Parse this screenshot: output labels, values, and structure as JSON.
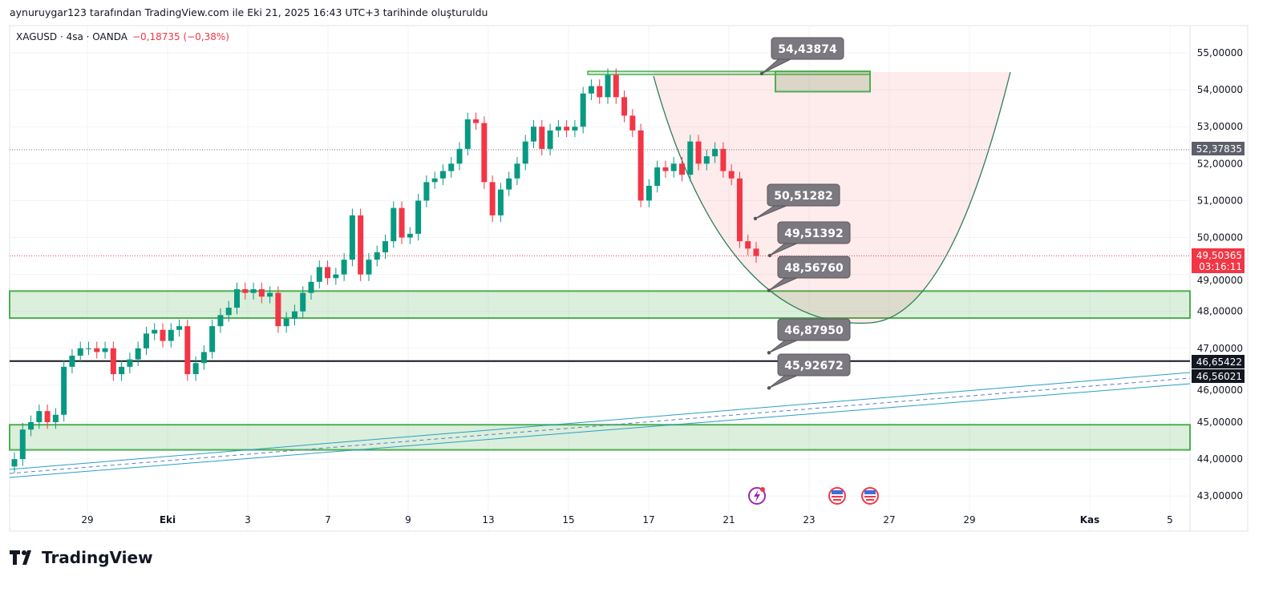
{
  "header": {
    "credit": "aynuruygar123 tarafından TradingView.com ile Eki 21, 2025 16:43 UTC+3 tarihinde oluşturuldu"
  },
  "legend": {
    "symbol": "XAGUSD · 4sa · OANDA",
    "change": "−0,18735 (−0,38%)"
  },
  "brand": {
    "name": "TradingView"
  },
  "colors": {
    "up": "#089981",
    "down": "#f23645",
    "zone": "#4caf50",
    "channel": "#2a9fc4",
    "curve": "#2e7d5b"
  },
  "chart_data": {
    "type": "candlestick",
    "symbol": "XAGUSD",
    "interval": "4sa",
    "ylim": [
      42.6,
      55.5
    ],
    "y_ticks": [
      "55,00000",
      "54,00000",
      "53,00000",
      "52,00000",
      "51,00000",
      "50,00000",
      "49,00000",
      "48,00000",
      "47,00000",
      "46,00000",
      "45,00000",
      "44,00000",
      "43,00000"
    ],
    "y_tick_values": [
      55,
      54,
      53,
      52,
      51,
      50,
      49,
      48,
      47,
      46,
      45,
      44,
      43
    ],
    "x_labels": [
      {
        "label": "29",
        "day": 0
      },
      {
        "label": "Eki",
        "day": 2
      },
      {
        "label": "3",
        "day": 4
      },
      {
        "label": "7",
        "day": 6
      },
      {
        "label": "9",
        "day": 8
      },
      {
        "label": "13",
        "day": 10
      },
      {
        "label": "15",
        "day": 12
      },
      {
        "label": "17",
        "day": 14
      },
      {
        "label": "21",
        "day": 16
      },
      {
        "label": "23",
        "day": 18
      },
      {
        "label": "27",
        "day": 20
      },
      {
        "label": "29",
        "day": 22
      },
      {
        "label": "Kas",
        "day": 25
      },
      {
        "label": "5",
        "day": 27
      }
    ],
    "candles": {
      "first_day": -1.82,
      "last_day": 16.68,
      "open_first": 43.8,
      "wick": 0.18,
      "closes": [
        44.0,
        44.8,
        45.0,
        45.3,
        45.0,
        45.2,
        46.5,
        46.8,
        47.0,
        47.0,
        46.9,
        47.0,
        46.3,
        46.5,
        46.7,
        47.0,
        47.4,
        47.5,
        47.2,
        47.5,
        47.6,
        46.3,
        46.6,
        46.9,
        47.6,
        47.9,
        48.1,
        48.6,
        48.5,
        48.6,
        48.4,
        48.5,
        47.6,
        47.8,
        48.0,
        48.5,
        48.8,
        49.2,
        48.9,
        49.0,
        49.4,
        50.6,
        49.0,
        49.4,
        49.6,
        49.9,
        50.8,
        50.0,
        50.1,
        51.0,
        51.5,
        51.6,
        51.8,
        52.0,
        52.4,
        53.2,
        53.1,
        51.5,
        50.6,
        51.3,
        51.6,
        52.0,
        52.6,
        53.0,
        52.4,
        52.9,
        53.0,
        52.9,
        53.0,
        53.9,
        54.1,
        53.8,
        54.4,
        53.8,
        53.3,
        52.9,
        51.0,
        51.4,
        51.9,
        51.8,
        52.0,
        51.7,
        52.6,
        52.0,
        52.2,
        52.4,
        51.8,
        51.6,
        49.9,
        49.7,
        49.5
      ]
    },
    "zones": [
      {
        "top": 48.55,
        "bottom": 47.82
      },
      {
        "top": 44.93,
        "bottom": 44.25
      }
    ],
    "top_box": {
      "top": 54.5,
      "bottom": 53.95
    },
    "horizontal_line": 46.654,
    "price_lines": {
      "prev": 52.37835,
      "last": 49.50365
    },
    "callouts": [
      {
        "text": "54,43874",
        "price": 54.43874
      },
      {
        "text": "50,51282",
        "price": 50.51282
      },
      {
        "text": "49,51392",
        "price": 49.51392
      },
      {
        "text": "48,56760",
        "price": 48.5676
      },
      {
        "text": "46,87950",
        "price": 46.8795
      },
      {
        "text": "45,92672",
        "price": 45.92672
      }
    ],
    "axis_badges": [
      {
        "text": "52,37835",
        "bg": "#5d606b"
      },
      {
        "text": "49,50365",
        "sub": "03:16:11",
        "bg": "#f23645"
      },
      {
        "text": "46,65422",
        "bg": "#131722"
      },
      {
        "text": "46,56021",
        "bg": "#131722"
      }
    ],
    "events": [
      "flash-event-icon",
      "us-flag-icon",
      "us-flag-icon"
    ]
  }
}
